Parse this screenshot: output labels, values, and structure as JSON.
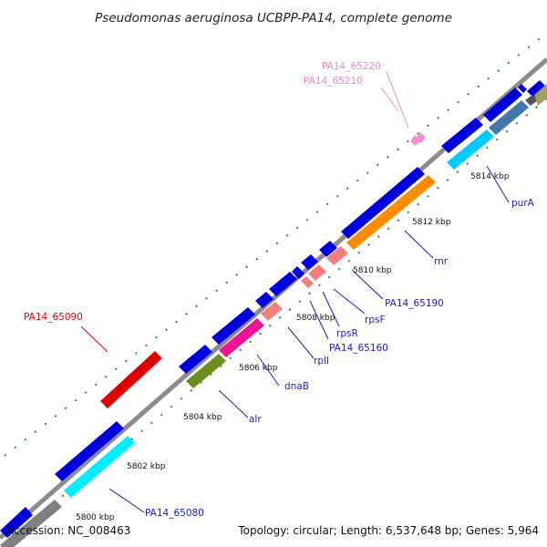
{
  "title": "Pseudomonas aeruginosa UCBPP-PA14, complete genome",
  "footer": {
    "accession": "Accession: NC_008463",
    "topology": "Topology: circular; Length: 6,537,648 bp; Genes: 5,964"
  },
  "colors": {
    "backbone": "#8c8c8c",
    "tick_green": "#2e8b2e",
    "label_blue": "#1a1acc",
    "label_red": "#dd0000",
    "label_pink": "#ee88bb"
  },
  "coordinate_labels": [
    "5800 kbp",
    "5802 kbp",
    "5804 kbp",
    "5806 kbp",
    "5808 kbp",
    "5810 kbp",
    "5812 kbp",
    "5814 kbp"
  ],
  "gene_labels": [
    {
      "text": "PA14_65080",
      "color": "#1a1acc"
    },
    {
      "text": "alr",
      "color": "#1a1acc"
    },
    {
      "text": "dnaB",
      "color": "#1a1acc"
    },
    {
      "text": "rplI",
      "color": "#1a1acc"
    },
    {
      "text": "PA14_65160",
      "color": "#1a1acc"
    },
    {
      "text": "rpsR",
      "color": "#1a1acc"
    },
    {
      "text": "rpsF",
      "color": "#1a1acc"
    },
    {
      "text": "PA14_65190",
      "color": "#1a1acc"
    },
    {
      "text": "rnr",
      "color": "#1a1acc"
    },
    {
      "text": "purA",
      "color": "#1a1acc"
    },
    {
      "text": "PA14_65090",
      "color": "#dd0000"
    },
    {
      "text": "PA14_65210",
      "color": "#ee88bb"
    },
    {
      "text": "PA14_65220",
      "color": "#ee88bb"
    }
  ]
}
